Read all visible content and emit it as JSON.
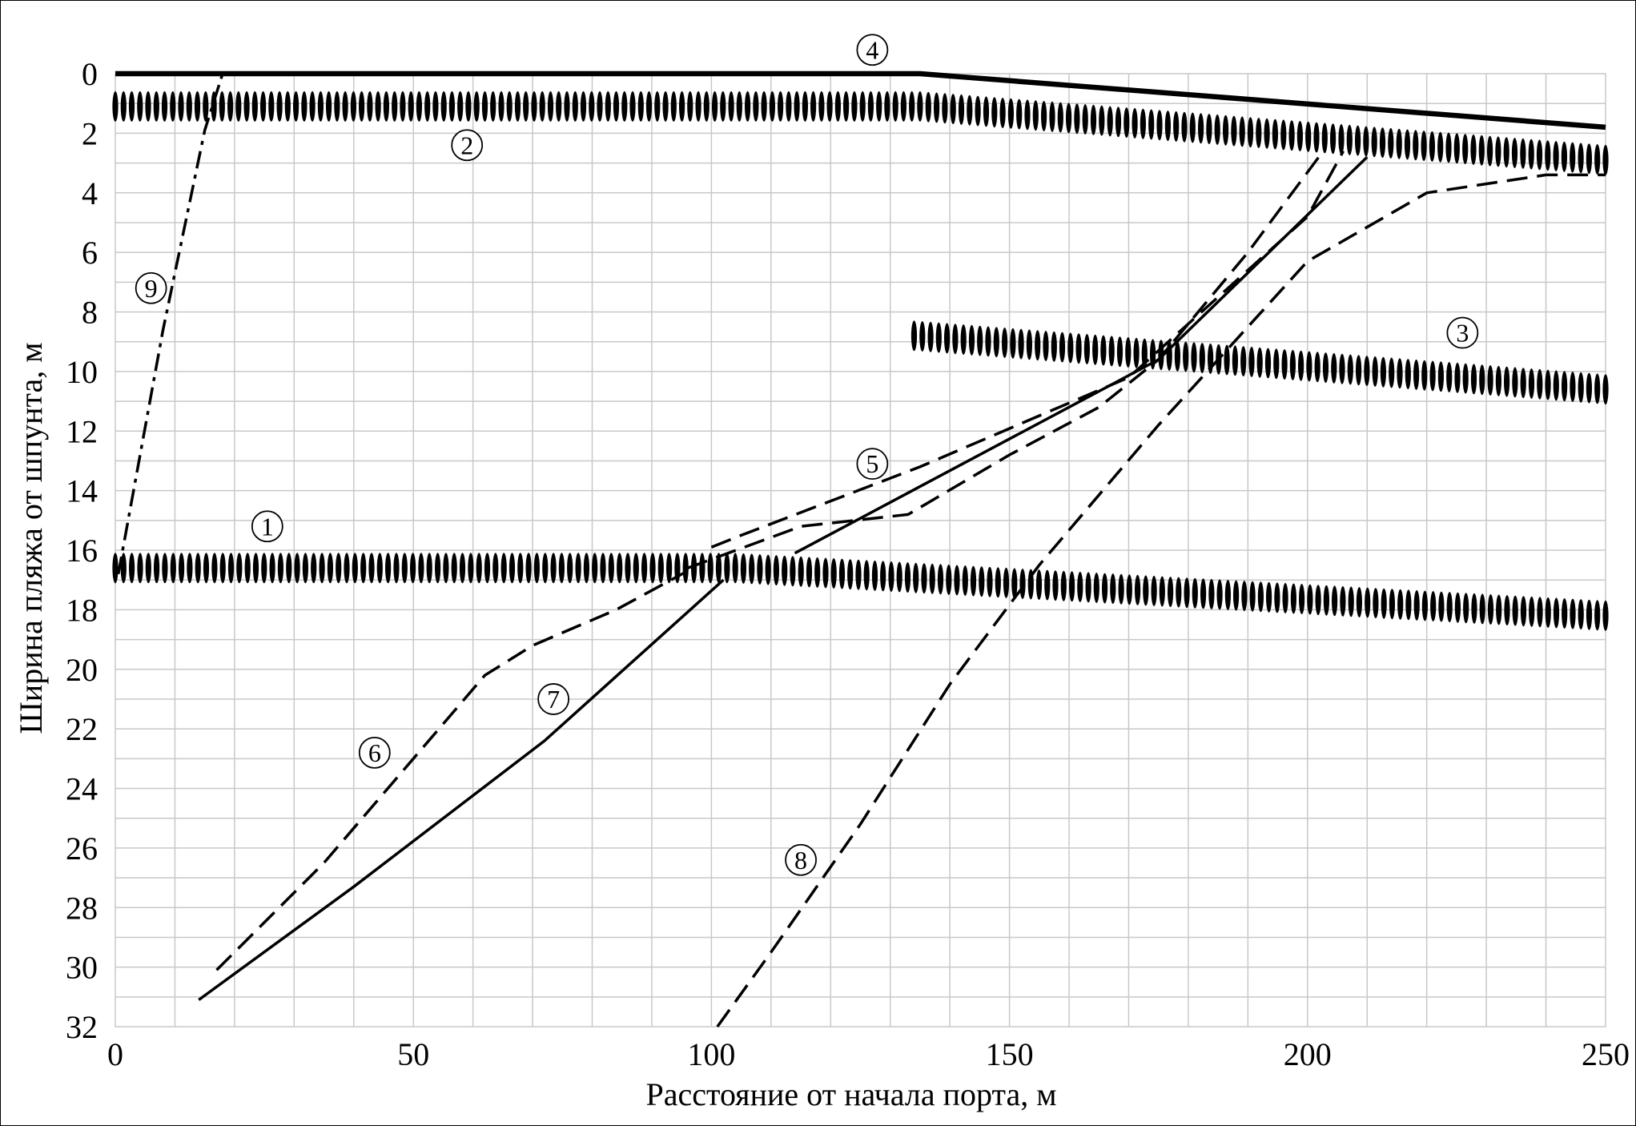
{
  "chart_data": {
    "type": "line",
    "title": "",
    "xlabel": "Расстояние от начала порта, м",
    "ylabel": "Ширина пляжа от шпунта, м",
    "xlim": [
      0,
      250
    ],
    "ylim": [
      0,
      32
    ],
    "y_inverted": true,
    "grid": true,
    "x_ticks": [
      "0",
      "50",
      "100",
      "150",
      "200",
      "250"
    ],
    "y_ticks": [
      "0",
      "2",
      "4",
      "6",
      "8",
      "10",
      "12",
      "14",
      "16",
      "18",
      "20",
      "22",
      "24",
      "26",
      "28",
      "30",
      "32"
    ],
    "series": [
      {
        "name": "1",
        "style": "hatched",
        "points": [
          [
            0,
            16.6
          ],
          [
            104,
            16.6
          ],
          [
            250,
            18.2
          ]
        ],
        "label_at": [
          25.5,
          15.2
        ]
      },
      {
        "name": "2",
        "style": "hatched",
        "points": [
          [
            0,
            1.1
          ],
          [
            135,
            1.1
          ],
          [
            250,
            2.9
          ]
        ],
        "label_at": [
          59,
          2.4
        ]
      },
      {
        "name": "3",
        "style": "hatched",
        "points": [
          [
            134,
            8.8
          ],
          [
            250,
            10.6
          ]
        ],
        "label_at": [
          226,
          8.7
        ]
      },
      {
        "name": "4",
        "style": "solid-thick",
        "points": [
          [
            0,
            0
          ],
          [
            135,
            0
          ],
          [
            250,
            1.8
          ]
        ],
        "label_at": [
          127,
          -0.8
        ]
      },
      {
        "name": "5",
        "style": "dashed",
        "points": [
          [
            100,
            15.9
          ],
          [
            105,
            15.5
          ],
          [
            135,
            13.2
          ],
          [
            170,
            10.2
          ],
          [
            200,
            4.8
          ],
          [
            206,
            2.6
          ]
        ],
        "label_at": [
          127,
          13.1
        ]
      },
      {
        "name": "5",
        "style": "dashed",
        "points": [
          [
            96,
            16.6
          ],
          [
            115,
            15.2
          ],
          [
            133,
            14.8
          ],
          [
            150,
            12.8
          ],
          [
            165,
            11.2
          ],
          [
            175,
            9.6
          ],
          [
            190,
            6.0
          ],
          [
            203,
            2.5
          ]
        ],
        "label_at": null
      },
      {
        "name": "6",
        "style": "dashed",
        "points": [
          [
            17,
            30.1
          ],
          [
            35,
            26.5
          ],
          [
            50,
            23.0
          ],
          [
            62,
            20.2
          ],
          [
            70,
            19.2
          ],
          [
            84,
            18.0
          ],
          [
            96,
            16.7
          ]
        ],
        "label_at": [
          43.5,
          22.8
        ]
      },
      {
        "name": "7",
        "style": "solid",
        "points": [
          [
            14,
            31.1
          ],
          [
            40,
            27.3
          ],
          [
            72,
            22.4
          ],
          [
            102,
            17.0
          ]
        ],
        "label_at": [
          73.5,
          21.0
        ]
      },
      {
        "name": "7",
        "style": "solid",
        "points": [
          [
            114,
            16.1
          ],
          [
            175,
            9.6
          ],
          [
            210,
            2.8
          ]
        ],
        "label_at": null
      },
      {
        "name": "8",
        "style": "dashed",
        "points": [
          [
            101,
            32
          ],
          [
            110,
            29.5
          ],
          [
            125,
            25.2
          ],
          [
            140,
            20.5
          ],
          [
            155,
            16.5
          ],
          [
            175,
            11.8
          ],
          [
            200,
            6.3
          ],
          [
            220,
            4.0
          ],
          [
            240,
            3.4
          ],
          [
            250,
            3.4
          ]
        ],
        "label_at": [
          115,
          26.4
        ]
      },
      {
        "name": "9",
        "style": "dash-dot",
        "points": [
          [
            0.5,
            16.8
          ],
          [
            8,
            8.6
          ],
          [
            15,
            1.9
          ],
          [
            18,
            0
          ]
        ],
        "label_at": [
          6,
          7.2
        ]
      }
    ]
  },
  "colors": {
    "line": "#000000",
    "grid": "#c8c8c8",
    "background": "#ffffff"
  }
}
